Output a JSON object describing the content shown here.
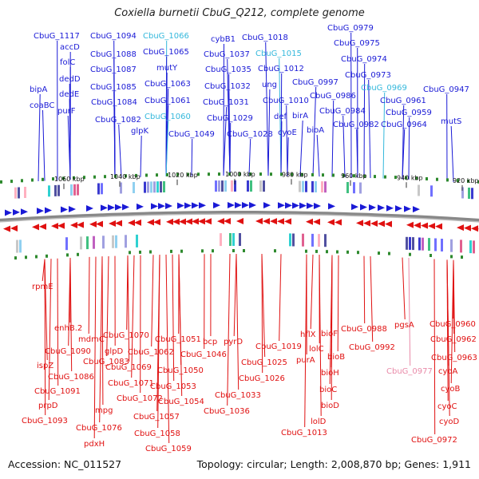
{
  "title": "Coxiella burnetii CbuG_Q212, complete genome",
  "footer": {
    "accession": "Accession: NC_011527",
    "topology": "Topology: circular; Length: 2,008,870 bp; Genes: 1,911"
  },
  "colors": {
    "forward": "#1a1ad6",
    "reverse": "#e01010",
    "cyan": "#34b8dc",
    "pink": "#e98aa8",
    "feature": "#2e8a2e",
    "backbone": "#888888"
  },
  "scale_labels": [
    "1060 kbp",
    "1040 kbp",
    "1020 kbp",
    "1000 kbp",
    "980 kbp",
    "960 kbp",
    "940 kbp",
    "920 kbp"
  ],
  "top_genes": [
    {
      "label": "CbuG_1117",
      "style": "f"
    },
    {
      "label": "accD",
      "style": "f"
    },
    {
      "label": "folC",
      "style": "f"
    },
    {
      "label": "dedD",
      "style": "f"
    },
    {
      "label": "bipA",
      "style": "f"
    },
    {
      "label": "dedE",
      "style": "f"
    },
    {
      "label": "coaBC",
      "style": "f"
    },
    {
      "label": "purF",
      "style": "f"
    },
    {
      "label": "CbuG_1094",
      "style": "f"
    },
    {
      "label": "CbuG_1088",
      "style": "f"
    },
    {
      "label": "CbuG_1087",
      "style": "f"
    },
    {
      "label": "CbuG_1085",
      "style": "f"
    },
    {
      "label": "CbuG_1084",
      "style": "f"
    },
    {
      "label": "CbuG_1082",
      "style": "f"
    },
    {
      "label": "CbuG_1066",
      "style": "c"
    },
    {
      "label": "CbuG_1065",
      "style": "f"
    },
    {
      "label": "mutY",
      "style": "f"
    },
    {
      "label": "CbuG_1063",
      "style": "f"
    },
    {
      "label": "CbuG_1061",
      "style": "f"
    },
    {
      "label": "CbuG_1060",
      "style": "c"
    },
    {
      "label": "glpK",
      "style": "f"
    },
    {
      "label": "CbuG_1049",
      "style": "f"
    },
    {
      "label": "cybB1",
      "style": "f"
    },
    {
      "label": "CbuG_1018",
      "style": "f"
    },
    {
      "label": "CbuG_1037",
      "style": "f"
    },
    {
      "label": "CbuG_1015",
      "style": "c"
    },
    {
      "label": "CbuG_1035",
      "style": "f"
    },
    {
      "label": "CbuG_1012",
      "style": "f"
    },
    {
      "label": "CbuG_1032",
      "style": "f"
    },
    {
      "label": "ung",
      "style": "f"
    },
    {
      "label": "CbuG_1031",
      "style": "f"
    },
    {
      "label": "CbuG_1010",
      "style": "f"
    },
    {
      "label": "CbuG_1029",
      "style": "f"
    },
    {
      "label": "def",
      "style": "f"
    },
    {
      "label": "birA",
      "style": "f"
    },
    {
      "label": "CbuG_1028",
      "style": "f"
    },
    {
      "label": "cyoE",
      "style": "f"
    },
    {
      "label": "CbuG_0979",
      "style": "f"
    },
    {
      "label": "CbuG_0975",
      "style": "f"
    },
    {
      "label": "CbuG_0974",
      "style": "f"
    },
    {
      "label": "CbuG_0973",
      "style": "f"
    },
    {
      "label": "CbuG_0997",
      "style": "f"
    },
    {
      "label": "CbuG_0969",
      "style": "c"
    },
    {
      "label": "CbuG_0947",
      "style": "f"
    },
    {
      "label": "CbuG_0986",
      "style": "f"
    },
    {
      "label": "CbuG_0961",
      "style": "f"
    },
    {
      "label": "CbuG_0984",
      "style": "f"
    },
    {
      "label": "CbuG_0959",
      "style": "f"
    },
    {
      "label": "mutS",
      "style": "f"
    },
    {
      "label": "CbuG_0982",
      "style": "f"
    },
    {
      "label": "CbuG_0964",
      "style": "f"
    },
    {
      "label": "bioA",
      "style": "f"
    }
  ],
  "bottom_genes": [
    {
      "label": "rpmE",
      "style": "r"
    },
    {
      "label": "enhB.2",
      "style": "r"
    },
    {
      "label": "mdmC",
      "style": "r"
    },
    {
      "label": "CbuG_1070",
      "style": "r"
    },
    {
      "label": "CbuG_1051",
      "style": "r"
    },
    {
      "label": "bcp",
      "style": "r"
    },
    {
      "label": "pyrD",
      "style": "r"
    },
    {
      "label": "CbuG_1090",
      "style": "r"
    },
    {
      "label": "CbuG_1083",
      "style": "r"
    },
    {
      "label": "glpD",
      "style": "r"
    },
    {
      "label": "CbuG_1062",
      "style": "r"
    },
    {
      "label": "CbuG_1046",
      "style": "r"
    },
    {
      "label": "ispZ",
      "style": "r"
    },
    {
      "label": "CbuG_1069",
      "style": "r"
    },
    {
      "label": "CbuG_1050",
      "style": "r"
    },
    {
      "label": "CbuG_1086",
      "style": "r"
    },
    {
      "label": "CbuG_1071",
      "style": "r"
    },
    {
      "label": "CbuG_1053",
      "style": "r"
    },
    {
      "label": "CbuG_1091",
      "style": "r"
    },
    {
      "label": "CbuG_1072",
      "style": "r"
    },
    {
      "label": "CbuG_1054",
      "style": "r"
    },
    {
      "label": "prpD",
      "style": "r"
    },
    {
      "label": "mpg",
      "style": "r"
    },
    {
      "label": "CbuG_1057",
      "style": "r"
    },
    {
      "label": "CbuG_1093",
      "style": "r"
    },
    {
      "label": "CbuG_1076",
      "style": "r"
    },
    {
      "label": "CbuG_1058",
      "style": "r"
    },
    {
      "label": "pdxH",
      "style": "r"
    },
    {
      "label": "CbuG_1059",
      "style": "r"
    },
    {
      "label": "CbuG_1033",
      "style": "r"
    },
    {
      "label": "CbuG_1036",
      "style": "r"
    },
    {
      "label": "CbuG_1019",
      "style": "r"
    },
    {
      "label": "CbuG_1025",
      "style": "r"
    },
    {
      "label": "CbuG_1026",
      "style": "r"
    },
    {
      "label": "hflX",
      "style": "r"
    },
    {
      "label": "bioF",
      "style": "r"
    },
    {
      "label": "lolC",
      "style": "r"
    },
    {
      "label": "bioB",
      "style": "r"
    },
    {
      "label": "purA",
      "style": "r"
    },
    {
      "label": "bioH",
      "style": "r"
    },
    {
      "label": "bioC",
      "style": "r"
    },
    {
      "label": "bioD",
      "style": "r"
    },
    {
      "label": "lolD",
      "style": "r"
    },
    {
      "label": "CbuG_1013",
      "style": "r"
    },
    {
      "label": "CbuG_0988",
      "style": "r"
    },
    {
      "label": "CbuG_0992",
      "style": "r"
    },
    {
      "label": "pgsA",
      "style": "r"
    },
    {
      "label": "CbuG_0960",
      "style": "r"
    },
    {
      "label": "CbuG_0962",
      "style": "r"
    },
    {
      "label": "CbuG_0963",
      "style": "r"
    },
    {
      "label": "CbuG_0977",
      "style": "p"
    },
    {
      "label": "cyoA",
      "style": "r"
    },
    {
      "label": "cyoB",
      "style": "r"
    },
    {
      "label": "cyoC",
      "style": "r"
    },
    {
      "label": "cyoD",
      "style": "r"
    },
    {
      "label": "CbuG_0972",
      "style": "r"
    }
  ]
}
